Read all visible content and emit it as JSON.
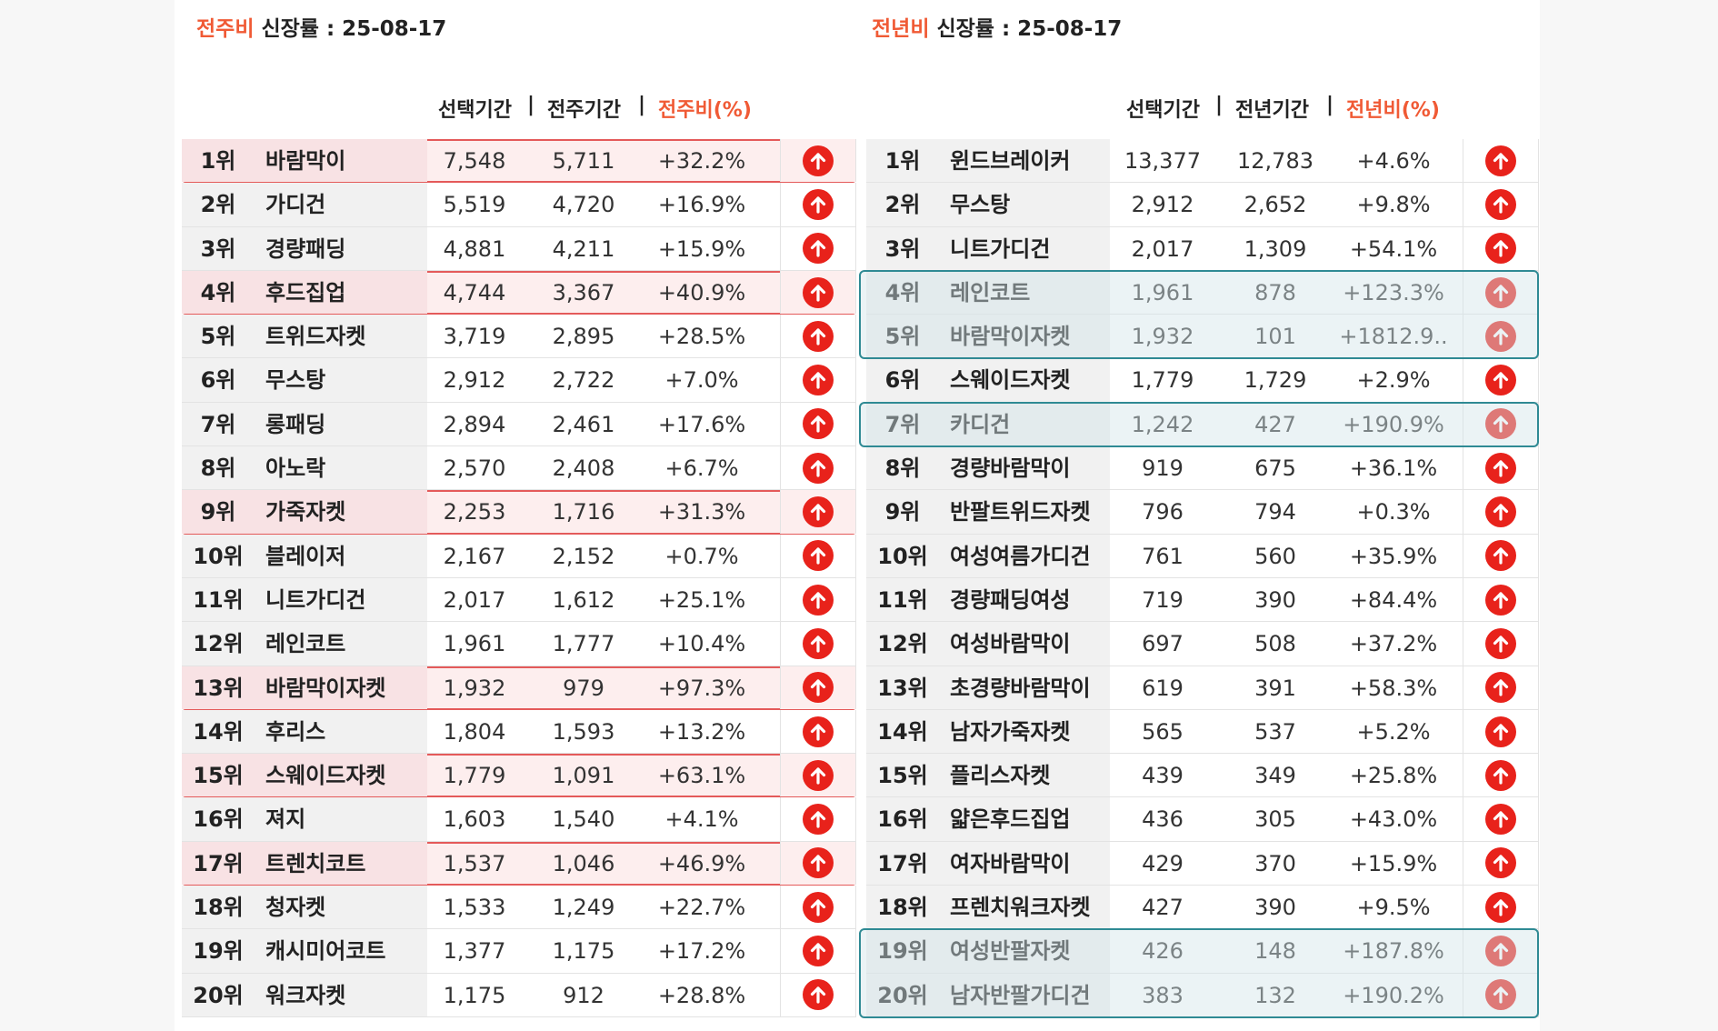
{
  "weekly": {
    "title_accent": "전주비",
    "title_rest": " 신장률 : 25-08-17",
    "headers": {
      "selected": "선택기간",
      "sep": "|",
      "compare": "전주기간",
      "ratio": "전주비(%)"
    },
    "rows": [
      {
        "rank": "1위",
        "name": "바람막이",
        "sel": "7,548",
        "cmp": "5,711",
        "pct": "+32.2%",
        "highlight": true
      },
      {
        "rank": "2위",
        "name": "가디건",
        "sel": "5,519",
        "cmp": "4,720",
        "pct": "+16.9%",
        "highlight": false
      },
      {
        "rank": "3위",
        "name": "경량패딩",
        "sel": "4,881",
        "cmp": "4,211",
        "pct": "+15.9%",
        "highlight": false
      },
      {
        "rank": "4위",
        "name": "후드집업",
        "sel": "4,744",
        "cmp": "3,367",
        "pct": "+40.9%",
        "highlight": true
      },
      {
        "rank": "5위",
        "name": "트위드자켓",
        "sel": "3,719",
        "cmp": "2,895",
        "pct": "+28.5%",
        "highlight": false
      },
      {
        "rank": "6위",
        "name": "무스탕",
        "sel": "2,912",
        "cmp": "2,722",
        "pct": "+7.0%",
        "highlight": false
      },
      {
        "rank": "7위",
        "name": "롱패딩",
        "sel": "2,894",
        "cmp": "2,461",
        "pct": "+17.6%",
        "highlight": false
      },
      {
        "rank": "8위",
        "name": "아노락",
        "sel": "2,570",
        "cmp": "2,408",
        "pct": "+6.7%",
        "highlight": false
      },
      {
        "rank": "9위",
        "name": "가죽자켓",
        "sel": "2,253",
        "cmp": "1,716",
        "pct": "+31.3%",
        "highlight": true
      },
      {
        "rank": "10위",
        "name": "블레이저",
        "sel": "2,167",
        "cmp": "2,152",
        "pct": "+0.7%",
        "highlight": false
      },
      {
        "rank": "11위",
        "name": "니트가디건",
        "sel": "2,017",
        "cmp": "1,612",
        "pct": "+25.1%",
        "highlight": false
      },
      {
        "rank": "12위",
        "name": "레인코트",
        "sel": "1,961",
        "cmp": "1,777",
        "pct": "+10.4%",
        "highlight": false
      },
      {
        "rank": "13위",
        "name": "바람막이자켓",
        "sel": "1,932",
        "cmp": "979",
        "pct": "+97.3%",
        "highlight": true
      },
      {
        "rank": "14위",
        "name": "후리스",
        "sel": "1,804",
        "cmp": "1,593",
        "pct": "+13.2%",
        "highlight": false
      },
      {
        "rank": "15위",
        "name": "스웨이드자켓",
        "sel": "1,779",
        "cmp": "1,091",
        "pct": "+63.1%",
        "highlight": true
      },
      {
        "rank": "16위",
        "name": "져지",
        "sel": "1,603",
        "cmp": "1,540",
        "pct": "+4.1%",
        "highlight": false
      },
      {
        "rank": "17위",
        "name": "트렌치코트",
        "sel": "1,537",
        "cmp": "1,046",
        "pct": "+46.9%",
        "highlight": true
      },
      {
        "rank": "18위",
        "name": "청자켓",
        "sel": "1,533",
        "cmp": "1,249",
        "pct": "+22.7%",
        "highlight": false
      },
      {
        "rank": "19위",
        "name": "캐시미어코트",
        "sel": "1,377",
        "cmp": "1,175",
        "pct": "+17.2%",
        "highlight": false
      },
      {
        "rank": "20위",
        "name": "워크자켓",
        "sel": "1,175",
        "cmp": "912",
        "pct": "+28.8%",
        "highlight": false
      }
    ]
  },
  "yearly": {
    "title_accent": "전년비",
    "title_rest": " 신장률 : 25-08-17",
    "headers": {
      "selected": "선택기간",
      "sep": "|",
      "compare": "전년기간",
      "ratio": "전년비(%)"
    },
    "teal_groups": [
      [
        4,
        5
      ],
      [
        7,
        7
      ],
      [
        19,
        20
      ]
    ],
    "rows": [
      {
        "rank": "1위",
        "name": "윈드브레이커",
        "sel": "13,377",
        "cmp": "12,783",
        "pct": "+4.6%"
      },
      {
        "rank": "2위",
        "name": "무스탕",
        "sel": "2,912",
        "cmp": "2,652",
        "pct": "+9.8%"
      },
      {
        "rank": "3위",
        "name": "니트가디건",
        "sel": "2,017",
        "cmp": "1,309",
        "pct": "+54.1%"
      },
      {
        "rank": "4위",
        "name": "레인코트",
        "sel": "1,961",
        "cmp": "878",
        "pct": "+123.3%"
      },
      {
        "rank": "5위",
        "name": "바람막이자켓",
        "sel": "1,932",
        "cmp": "101",
        "pct": "+1812.9.."
      },
      {
        "rank": "6위",
        "name": "스웨이드자켓",
        "sel": "1,779",
        "cmp": "1,729",
        "pct": "+2.9%"
      },
      {
        "rank": "7위",
        "name": "카디건",
        "sel": "1,242",
        "cmp": "427",
        "pct": "+190.9%"
      },
      {
        "rank": "8위",
        "name": "경량바람막이",
        "sel": "919",
        "cmp": "675",
        "pct": "+36.1%"
      },
      {
        "rank": "9위",
        "name": "반팔트위드자켓",
        "sel": "796",
        "cmp": "794",
        "pct": "+0.3%"
      },
      {
        "rank": "10위",
        "name": "여성여름가디건",
        "sel": "761",
        "cmp": "560",
        "pct": "+35.9%"
      },
      {
        "rank": "11위",
        "name": "경량패딩여성",
        "sel": "719",
        "cmp": "390",
        "pct": "+84.4%"
      },
      {
        "rank": "12위",
        "name": "여성바람막이",
        "sel": "697",
        "cmp": "508",
        "pct": "+37.2%"
      },
      {
        "rank": "13위",
        "name": "초경량바람막이",
        "sel": "619",
        "cmp": "391",
        "pct": "+58.3%"
      },
      {
        "rank": "14위",
        "name": "남자가죽자켓",
        "sel": "565",
        "cmp": "537",
        "pct": "+5.2%"
      },
      {
        "rank": "15위",
        "name": "플리스자켓",
        "sel": "439",
        "cmp": "349",
        "pct": "+25.8%"
      },
      {
        "rank": "16위",
        "name": "얇은후드집업",
        "sel": "436",
        "cmp": "305",
        "pct": "+43.0%"
      },
      {
        "rank": "17위",
        "name": "여자바람막이",
        "sel": "429",
        "cmp": "370",
        "pct": "+15.9%"
      },
      {
        "rank": "18위",
        "name": "프렌치워크자켓",
        "sel": "427",
        "cmp": "390",
        "pct": "+9.5%"
      },
      {
        "rank": "19위",
        "name": "여성반팔자켓",
        "sel": "426",
        "cmp": "148",
        "pct": "+187.8%"
      },
      {
        "rank": "20위",
        "name": "남자반팔가디건",
        "sel": "383",
        "cmp": "132",
        "pct": "+190.2%"
      }
    ]
  },
  "icons": {
    "trend": "arrow-up-circle-icon"
  },
  "colors": {
    "accent": "#f05a35",
    "up": "#e8221b",
    "highlight_red": "#e45a5a",
    "highlight_teal": "#2f8a94"
  }
}
